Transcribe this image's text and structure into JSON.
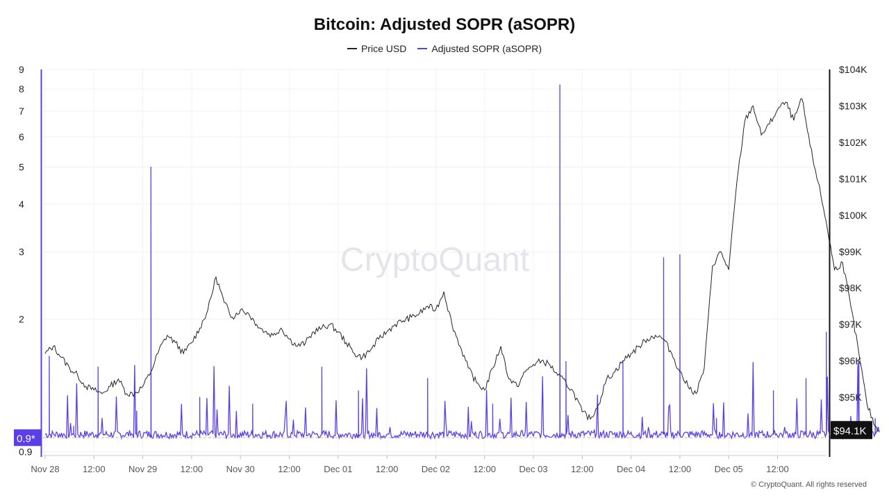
{
  "chart_data": {
    "type": "line",
    "title": "Bitcoin: Adjusted SOPR (aSOPR)",
    "legend": [
      {
        "name": "Price USD",
        "color": "#222222"
      },
      {
        "name": "Adjusted SOPR (aSOPR)",
        "color": "#5b3fe6"
      }
    ],
    "left_axis": {
      "scale": "log",
      "range": [
        0.88,
        9
      ],
      "ticks": [
        "0.9",
        "2",
        "3",
        "4",
        "5",
        "6",
        "7",
        "8",
        "9"
      ]
    },
    "right_axis": {
      "range": [
        93400,
        104000
      ],
      "ticks": [
        "$95K",
        "$96K",
        "$97K",
        "$98K",
        "$99K",
        "$100K",
        "$101K",
        "$102K",
        "$103K",
        "$104K"
      ]
    },
    "x_axis": {
      "ticks": [
        "Nov 28",
        "12:00",
        "Nov 29",
        "12:00",
        "Nov 30",
        "12:00",
        "Dec 01",
        "12:00",
        "Dec 02",
        "12:00",
        "Dec 03",
        "12:00",
        "Dec 04",
        "12:00",
        "Dec 05",
        "12:00"
      ]
    },
    "reference_line": {
      "label": "0.9*",
      "value": 0.98
    },
    "current_price_label": "$94.1K",
    "grid": true,
    "legend_position": "top-center",
    "series": [
      {
        "name": "Price USD",
        "x_hours": [
          0,
          2,
          4,
          6,
          8,
          10,
          12,
          14,
          16,
          18,
          20,
          22,
          24,
          26,
          28,
          30,
          32,
          34,
          36,
          38,
          40,
          42,
          44,
          46,
          48,
          50,
          52,
          54,
          56,
          58,
          60,
          62,
          64,
          66,
          68,
          70,
          72,
          74,
          76,
          78,
          80,
          82,
          84,
          86,
          88,
          90,
          92,
          94,
          96,
          98,
          100,
          102,
          104,
          106,
          108,
          110,
          112,
          114,
          116,
          118,
          120,
          122,
          124,
          126,
          128,
          130,
          132,
          134,
          136,
          138,
          140,
          142,
          144,
          146,
          148,
          150,
          152,
          154,
          156,
          158,
          160,
          162,
          164,
          166,
          168,
          170,
          172,
          174,
          176,
          178,
          180,
          182,
          184,
          186,
          188,
          190,
          192,
          194,
          196,
          198,
          200,
          202,
          204,
          205
        ],
        "values": [
          96200,
          96400,
          96100,
          95800,
          95600,
          95300,
          95200,
          95100,
          95300,
          95500,
          95100,
          95100,
          95300,
          95700,
          96300,
          96700,
          96500,
          96200,
          96500,
          96900,
          97400,
          98300,
          97600,
          97200,
          97400,
          97300,
          97000,
          96800,
          96700,
          96900,
          96600,
          96400,
          96500,
          96800,
          96900,
          97000,
          96800,
          96500,
          96200,
          96100,
          96300,
          96600,
          96800,
          97000,
          97100,
          97200,
          97300,
          97500,
          97400,
          97900,
          97000,
          96400,
          95800,
          95400,
          95200,
          95800,
          96400,
          95500,
          95300,
          95700,
          95900,
          96000,
          95900,
          95600,
          95400,
          95100,
          94600,
          94400,
          94800,
          95500,
          95700,
          96000,
          96200,
          96400,
          96600,
          96700,
          96600,
          96200,
          95700,
          95300,
          95100,
          95800,
          98600,
          99000,
          98500,
          100900,
          102600,
          103000,
          102200,
          102500,
          102900,
          103100,
          102600,
          103200,
          101900,
          100900,
          99800,
          98500,
          98700,
          97500,
          96200,
          94800,
          94200,
          94100
        ]
      },
      {
        "name": "Adjusted SOPR (aSOPR)",
        "baseline": 1.0,
        "spikes": [
          {
            "x_hours": 1,
            "value": 1.6
          },
          {
            "x_hours": 7,
            "value": 1.05
          },
          {
            "x_hours": 13,
            "value": 1.5
          },
          {
            "x_hours": 22.5,
            "value": 1.15
          },
          {
            "x_hours": 26,
            "value": 5.0
          },
          {
            "x_hours": 38,
            "value": 1.25
          },
          {
            "x_hours": 51,
            "value": 1.2
          },
          {
            "x_hours": 68,
            "value": 1.5
          },
          {
            "x_hours": 77,
            "value": 1.3
          },
          {
            "x_hours": 94,
            "value": 1.4
          },
          {
            "x_hours": 110,
            "value": 1.2
          },
          {
            "x_hours": 126.5,
            "value": 8.2
          },
          {
            "x_hours": 128,
            "value": 1.55
          },
          {
            "x_hours": 142,
            "value": 1.55
          },
          {
            "x_hours": 152,
            "value": 2.9
          },
          {
            "x_hours": 156,
            "value": 2.95
          },
          {
            "x_hours": 165,
            "value": 1.1
          },
          {
            "x_hours": 179,
            "value": 1.3
          },
          {
            "x_hours": 187,
            "value": 1.4
          },
          {
            "x_hours": 192,
            "value": 1.85
          },
          {
            "x_hours": 200,
            "value": 1.55
          },
          {
            "x_hours": 204,
            "value": 1.1
          }
        ]
      }
    ]
  },
  "watermark": "CryptoQuant",
  "copyright": "© CryptoQuant. All rights reserved"
}
